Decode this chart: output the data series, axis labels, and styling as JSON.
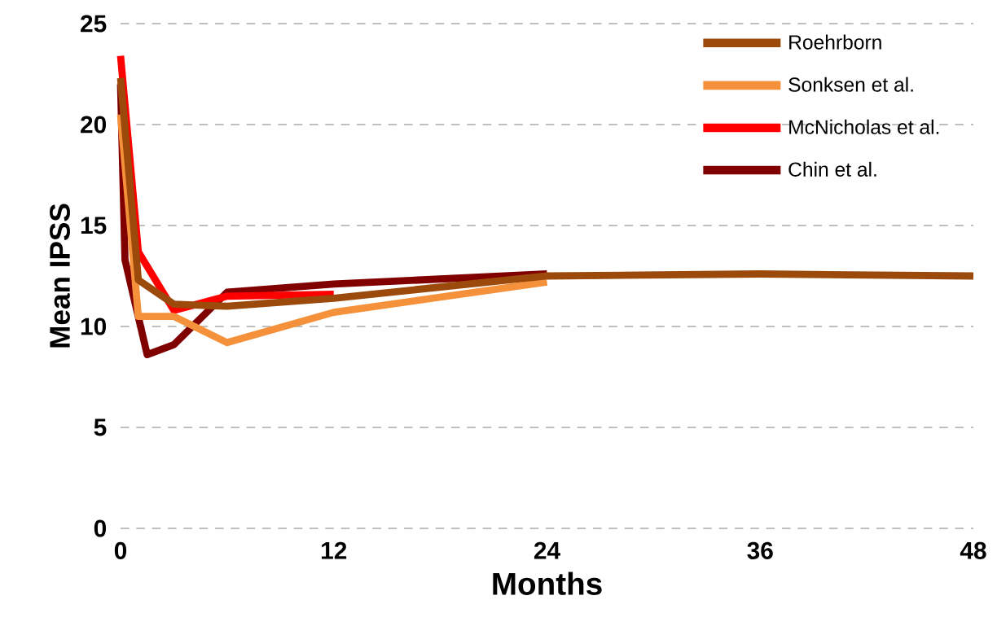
{
  "chart_data": {
    "type": "line",
    "xlabel": "Months",
    "ylabel": "Mean IPSS",
    "xlim": [
      0,
      48
    ],
    "ylim": [
      0,
      25
    ],
    "xticks": [
      0,
      12,
      24,
      36,
      48
    ],
    "yticks": [
      0,
      5,
      10,
      15,
      20,
      25
    ],
    "grid": "y",
    "legend": "top right",
    "marker": "none",
    "line_style": "solid",
    "series": [
      {
        "name": "Roehrborn",
        "color": "#9c4a0c",
        "x": [
          0,
          1,
          3,
          6,
          12,
          24,
          36,
          48
        ],
        "values": [
          22.3,
          12.3,
          11.1,
          11.0,
          11.4,
          12.5,
          12.6,
          12.5
        ]
      },
      {
        "name": "Sonksen et al.",
        "color": "#f5913a",
        "x": [
          0,
          1,
          3,
          6,
          12,
          24
        ],
        "values": [
          20.5,
          10.5,
          10.5,
          9.2,
          10.7,
          12.2
        ]
      },
      {
        "name": "McNicholas et al.",
        "color": "#ff0000",
        "x": [
          0,
          1,
          3,
          6,
          12
        ],
        "values": [
          23.4,
          13.7,
          10.8,
          11.5,
          11.6
        ]
      },
      {
        "name": "Chin et al.",
        "color": "#800000",
        "x": [
          0,
          0.25,
          1.5,
          3,
          6,
          12,
          24
        ],
        "values": [
          22.0,
          13.3,
          8.6,
          9.1,
          11.7,
          12.1,
          12.6
        ]
      }
    ]
  }
}
